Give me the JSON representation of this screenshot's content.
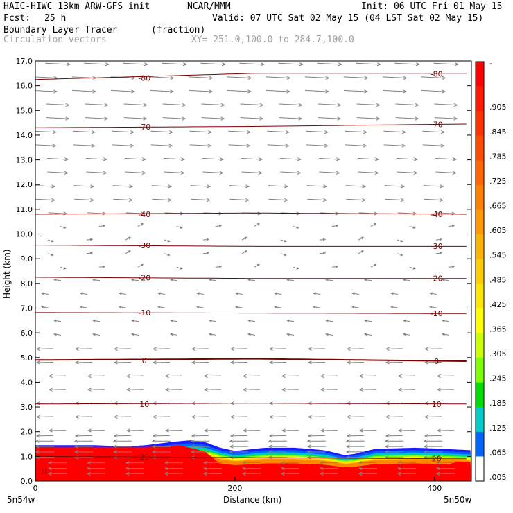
{
  "header": {
    "model": "HAIC-HIWC 13km ARW-GFS init",
    "org": "NCAR/MMM",
    "init": "Init: 06 UTC Fri 01 May 15",
    "fcst_label": "Fcst:",
    "fcst_value": "25 h",
    "valid": "Valid: 07 UTC Sat 02 May 15 (04 LST Sat 02 May 15)",
    "field": "Boundary Layer Tracer",
    "units": "(fraction)",
    "vectors": "Circulation vectors",
    "xy": "XY= 251.0,100.0 to 284.7,100.0"
  },
  "chart_data": {
    "type": "contour",
    "title": "Boundary Layer Tracer (fraction)",
    "xlabel": "Distance (km)",
    "ylabel": "Height (km)",
    "xlim": [
      0,
      437
    ],
    "ylim": [
      0,
      17
    ],
    "x_ticks": [
      0,
      200,
      400
    ],
    "y_ticks": [
      0.0,
      1.0,
      2.0,
      3.0,
      4.0,
      5.0,
      6.0,
      7.0,
      8.0,
      9.0,
      10.0,
      11.0,
      12.0,
      13.0,
      14.0,
      15.0,
      16.0,
      17.0
    ],
    "x_endpoints": [
      "5n54w",
      "5n50w"
    ],
    "colorbar_labels": [
      "-",
      ".905",
      ".845",
      ".785",
      ".725",
      ".665",
      ".605",
      ".545",
      ".485",
      ".425",
      ".365",
      ".305",
      ".245",
      ".185",
      ".125",
      ".065",
      ".005"
    ],
    "colorbar_colors": [
      "#ff0000",
      "#ff1a00",
      "#ff3300",
      "#ff4d00",
      "#ff6600",
      "#ff8000",
      "#ff9900",
      "#ffb300",
      "#ffcc00",
      "#ffe600",
      "#ffff00",
      "#ccff00",
      "#80ff00",
      "#00dd00",
      "#00cccc",
      "#0066ff",
      "#ffffff"
    ],
    "tracer_top_km": [
      [
        0,
        1.45
      ],
      [
        60,
        1.45
      ],
      [
        90,
        1.4
      ],
      [
        110,
        1.45
      ],
      [
        140,
        1.6
      ],
      [
        155,
        1.65
      ],
      [
        170,
        1.58
      ],
      [
        185,
        1.35
      ],
      [
        200,
        1.22
      ],
      [
        230,
        1.35
      ],
      [
        260,
        1.35
      ],
      [
        290,
        1.25
      ],
      [
        310,
        1.05
      ],
      [
        320,
        1.1
      ],
      [
        340,
        1.3
      ],
      [
        380,
        1.35
      ],
      [
        400,
        1.32
      ],
      [
        437,
        1.25
      ]
    ],
    "isotherms": [
      {
        "label": "20",
        "y": [
          1.0,
          0.95,
          0.9
        ]
      },
      {
        "label": "10",
        "y": [
          3.12,
          3.15,
          3.12
        ]
      },
      {
        "label": "0",
        "y": [
          4.9,
          4.95,
          4.85
        ]
      },
      {
        "label": "-10",
        "y": [
          6.82,
          6.8,
          6.78
        ]
      },
      {
        "label": "-20",
        "y": [
          8.25,
          8.2,
          8.2
        ]
      },
      {
        "label": "-30",
        "y": [
          9.55,
          9.5,
          9.5
        ]
      },
      {
        "label": "-40",
        "y": [
          10.8,
          10.85,
          10.8
        ]
      },
      {
        "label": "-70",
        "y": [
          14.3,
          14.35,
          14.45
        ]
      },
      {
        "label": "-80",
        "y": [
          16.25,
          16.5,
          16.5
        ]
      }
    ],
    "marker": "H"
  }
}
